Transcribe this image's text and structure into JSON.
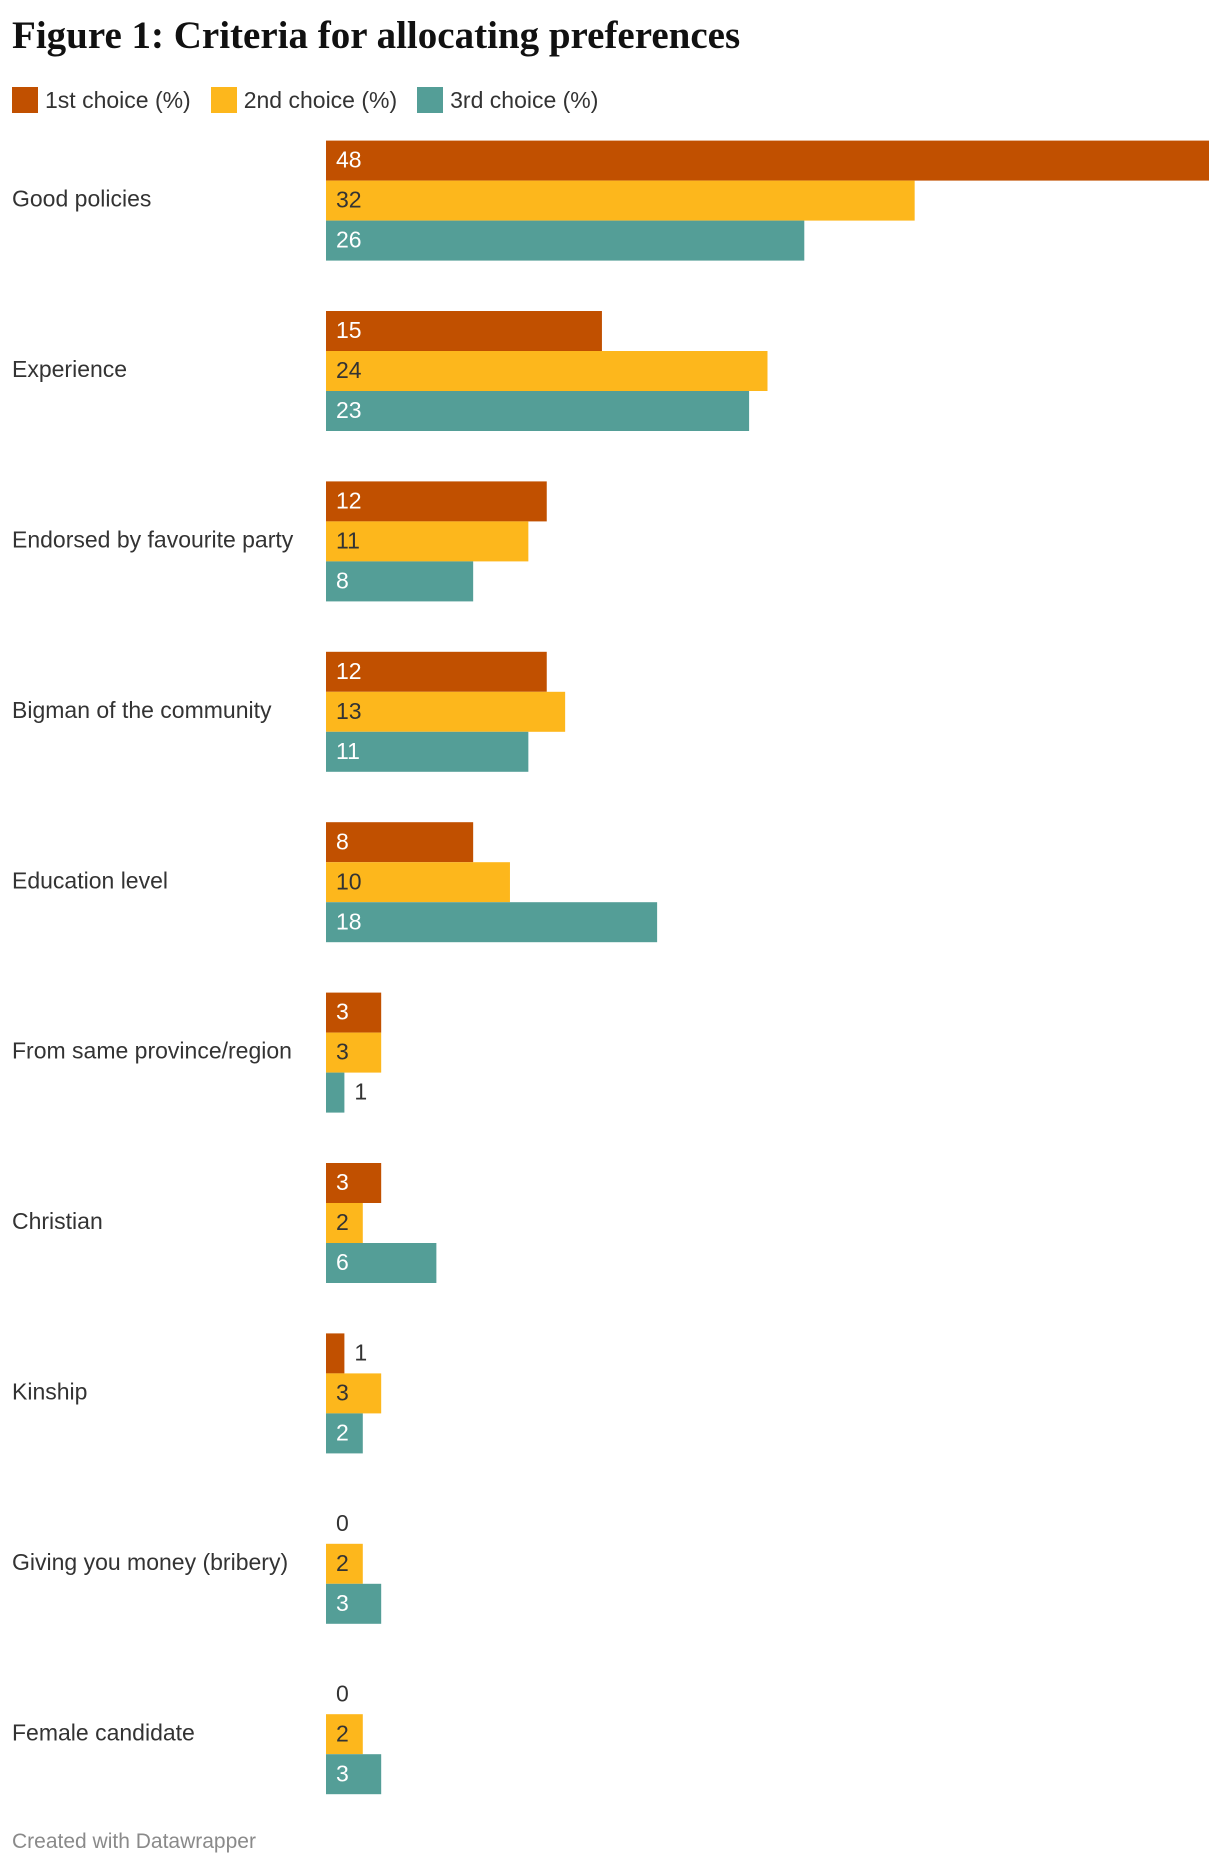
{
  "footer": "Created with Datawrapper",
  "chart_data": {
    "type": "bar",
    "orientation": "horizontal",
    "title": "Figure 1: Criteria for allocating preferences",
    "xlabel": "",
    "ylabel": "",
    "xlim": [
      0,
      48
    ],
    "grid": false,
    "legend": "top-left",
    "categories": [
      "Good policies",
      "Experience",
      "Endorsed by favourite party",
      "Bigman of the community",
      "Education level",
      "From same province/region",
      "Christian",
      "Kinship",
      "Giving you money (bribery)",
      "Female candidate"
    ],
    "series": [
      {
        "name": "1st choice (%)",
        "color": "#c15000",
        "label_color": "#ffffff",
        "values": [
          48,
          15,
          12,
          12,
          8,
          3,
          3,
          1,
          0,
          0
        ]
      },
      {
        "name": "2nd choice (%)",
        "color": "#fdb71c",
        "label_color": "#333333",
        "values": [
          32,
          24,
          11,
          13,
          10,
          3,
          2,
          3,
          2,
          2
        ]
      },
      {
        "name": "3rd choice (%)",
        "color": "#549e97",
        "label_color": "#ffffff",
        "values": [
          26,
          23,
          8,
          11,
          18,
          1,
          6,
          2,
          3,
          3
        ]
      }
    ]
  }
}
